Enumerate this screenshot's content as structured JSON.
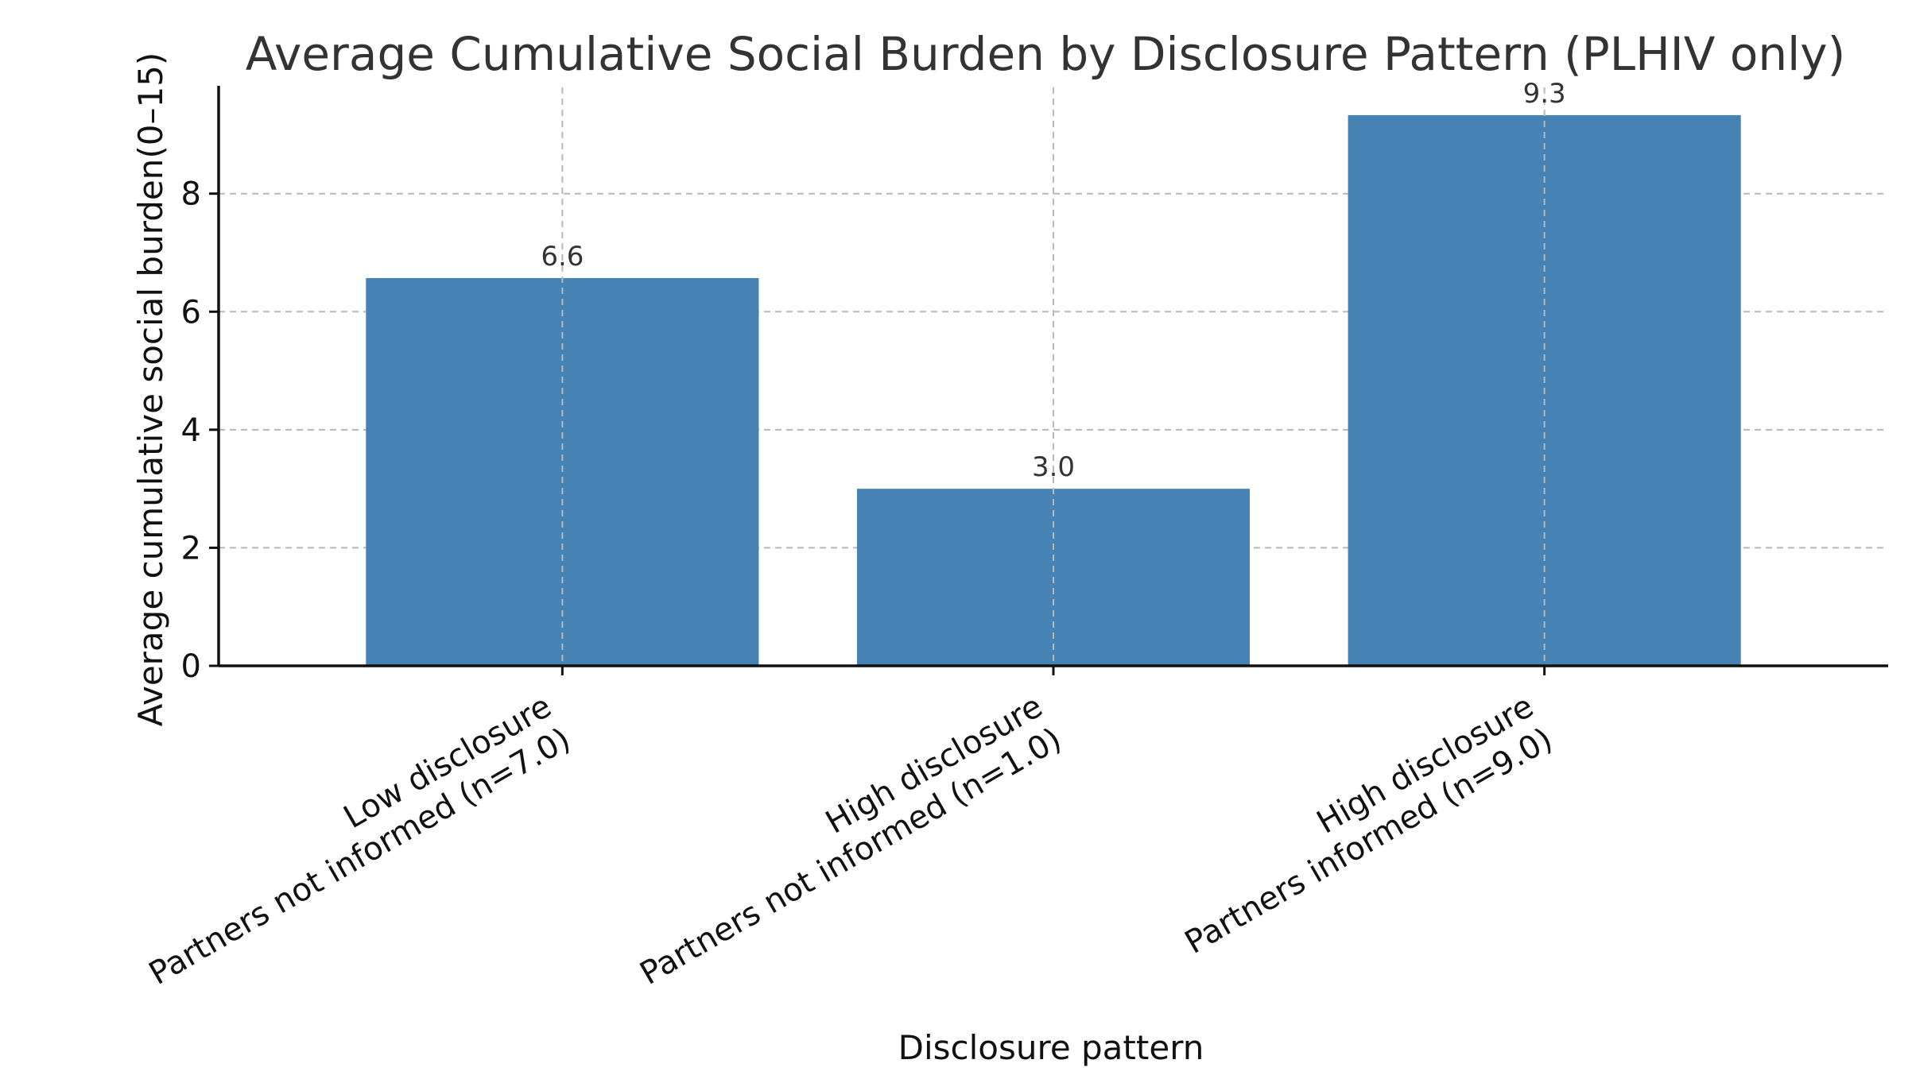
{
  "chart_data": {
    "type": "bar",
    "title": "Average Cumulative Social Burden by Disclosure Pattern (PLHIV only)",
    "xlabel": "Disclosure pattern",
    "ylabel": "Average cumulative social burden(0–15)",
    "categories": [
      [
        "Low disclosure",
        "Partners not informed (n=7.0)"
      ],
      [
        "High disclosure",
        "Partners not informed (n=1.0)"
      ],
      [
        "High disclosure",
        "Partners informed (n=9.0)"
      ]
    ],
    "values": [
      6.57,
      3.0,
      9.33
    ],
    "data_labels": [
      "6.6",
      "3.0",
      "9.3"
    ],
    "ylim": [
      0,
      9.8
    ],
    "yticks": [
      0,
      2,
      4,
      6,
      8
    ],
    "grid": true,
    "bar_color": "#4682b4"
  }
}
